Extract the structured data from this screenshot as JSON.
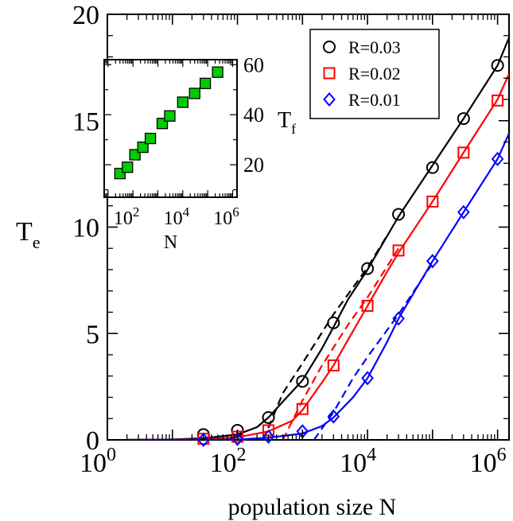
{
  "chart_data": [
    {
      "type": "line",
      "panel": "main",
      "xscale": "log",
      "xlim": [
        1,
        1500000
      ],
      "ylim": [
        0,
        20
      ],
      "xlabel": "population size N",
      "ylabel": "T",
      "ylabel_sub": "e",
      "x_ticks": [
        {
          "value": 1,
          "base": "10",
          "exp": "0"
        },
        {
          "value": 100,
          "base": "10",
          "exp": "2"
        },
        {
          "value": 10000,
          "base": "10",
          "exp": "4"
        },
        {
          "value": 1000000,
          "base": "10",
          "exp": "6"
        }
      ],
      "y_ticks": [
        {
          "value": 0,
          "label": "0"
        },
        {
          "value": 5,
          "label": "5"
        },
        {
          "value": 10,
          "label": "10"
        },
        {
          "value": 15,
          "label": "15"
        },
        {
          "value": 20,
          "label": "20"
        }
      ],
      "legend_position": "top-right",
      "series": [
        {
          "name": "R=0.03",
          "color": "#000000",
          "marker": "circle",
          "points": [
            [
              30,
              0.25
            ],
            [
              100,
              0.45
            ],
            [
              300,
              1.05
            ],
            [
              1000,
              2.75
            ],
            [
              3000,
              5.5
            ],
            [
              10000,
              8.05
            ],
            [
              30000,
              10.6
            ],
            [
              100000,
              12.8
            ],
            [
              300000,
              15.1
            ],
            [
              1000000,
              17.6
            ]
          ],
          "solid_curve": [
            [
              2,
              0.0
            ],
            [
              10,
              0.02
            ],
            [
              30,
              0.08
            ],
            [
              100,
              0.25
            ],
            [
              200,
              0.6
            ],
            [
              300,
              1.05
            ],
            [
              500,
              1.8
            ],
            [
              1000,
              2.8
            ],
            [
              2000,
              4.3
            ],
            [
              3000,
              5.3
            ],
            [
              5000,
              6.6
            ],
            [
              10000,
              8.0
            ],
            [
              30000,
              10.5
            ],
            [
              100000,
              12.9
            ],
            [
              300000,
              15.1
            ],
            [
              1000000,
              17.6
            ],
            [
              1500000,
              18.9
            ]
          ],
          "dashed_curve": [
            [
              250,
              0.0
            ],
            [
              500,
              2.2
            ],
            [
              1000,
              3.6
            ],
            [
              3000,
              5.9
            ],
            [
              10000,
              8.1
            ],
            [
              20000,
              9.6
            ]
          ]
        },
        {
          "name": "R=0.02",
          "color": "#ff0000",
          "marker": "square",
          "points": [
            [
              30,
              0.05
            ],
            [
              100,
              0.15
            ],
            [
              300,
              0.45
            ],
            [
              1000,
              1.45
            ],
            [
              3000,
              3.5
            ],
            [
              10000,
              6.3
            ],
            [
              30000,
              8.9
            ],
            [
              100000,
              11.2
            ],
            [
              300000,
              13.5
            ],
            [
              1000000,
              15.95
            ]
          ],
          "solid_curve": [
            [
              2,
              0.0
            ],
            [
              30,
              0.03
            ],
            [
              100,
              0.12
            ],
            [
              300,
              0.4
            ],
            [
              700,
              0.9
            ],
            [
              1000,
              1.4
            ],
            [
              2000,
              2.7
            ],
            [
              3000,
              3.5
            ],
            [
              5000,
              4.7
            ],
            [
              10000,
              6.3
            ],
            [
              20000,
              7.9
            ],
            [
              30000,
              8.8
            ],
            [
              100000,
              11.2
            ],
            [
              300000,
              13.5
            ],
            [
              1000000,
              16.0
            ],
            [
              1500000,
              17.2
            ]
          ],
          "dashed_curve": [
            [
              500,
              0.0
            ],
            [
              1000,
              1.85
            ],
            [
              2000,
              3.5
            ],
            [
              5000,
              5.4
            ],
            [
              10000,
              6.7
            ],
            [
              30000,
              9.0
            ]
          ]
        },
        {
          "name": "R=0.01",
          "color": "#0000ff",
          "marker": "diamond",
          "points": [
            [
              30,
              0.0
            ],
            [
              100,
              0.05
            ],
            [
              300,
              0.15
            ],
            [
              1000,
              0.4
            ],
            [
              3000,
              1.1
            ],
            [
              10000,
              2.9
            ],
            [
              30000,
              5.7
            ],
            [
              100000,
              8.4
            ],
            [
              300000,
              10.7
            ],
            [
              1000000,
              13.2
            ]
          ],
          "solid_curve": [
            [
              2,
              0.0
            ],
            [
              100,
              0.02
            ],
            [
              300,
              0.1
            ],
            [
              1000,
              0.3
            ],
            [
              2000,
              0.65
            ],
            [
              3000,
              1.05
            ],
            [
              6000,
              2.0
            ],
            [
              10000,
              2.9
            ],
            [
              20000,
              4.6
            ],
            [
              30000,
              5.7
            ],
            [
              100000,
              8.4
            ],
            [
              300000,
              10.7
            ],
            [
              1000000,
              13.2
            ],
            [
              1500000,
              14.4
            ]
          ],
          "dashed_curve": [
            [
              1500,
              0.0
            ],
            [
              3000,
              1.3
            ],
            [
              6000,
              2.9
            ],
            [
              10000,
              3.9
            ],
            [
              30000,
              5.9
            ],
            [
              100000,
              8.3
            ]
          ]
        }
      ]
    },
    {
      "type": "scatter",
      "panel": "inset",
      "xscale": "log",
      "xlim": [
        7,
        1500000
      ],
      "ylim": [
        7,
        62
      ],
      "xlabel": "N",
      "ylabel": "T",
      "ylabel_sub": "f",
      "x_ticks": [
        {
          "value": 100,
          "base": "10",
          "exp": "2"
        },
        {
          "value": 10000,
          "base": "10",
          "exp": "4"
        },
        {
          "value": 1000000,
          "base": "10",
          "exp": "6"
        }
      ],
      "y_ticks": [
        {
          "value": 20,
          "label": "20"
        },
        {
          "value": 40,
          "label": "40"
        },
        {
          "value": 60,
          "label": "60"
        }
      ],
      "series": [
        {
          "color": "#00cc00",
          "marker": "filled-square",
          "points": [
            [
              30,
              16.5
            ],
            [
              60,
              19.0
            ],
            [
              120,
              24.0
            ],
            [
              250,
              27.0
            ],
            [
              500,
              30.5
            ],
            [
              1500,
              36.5
            ],
            [
              3000,
              39.5
            ],
            [
              10000,
              45.0
            ],
            [
              30000,
              48.5
            ],
            [
              80000,
              52.5
            ],
            [
              250000,
              57.0
            ]
          ]
        }
      ]
    }
  ]
}
